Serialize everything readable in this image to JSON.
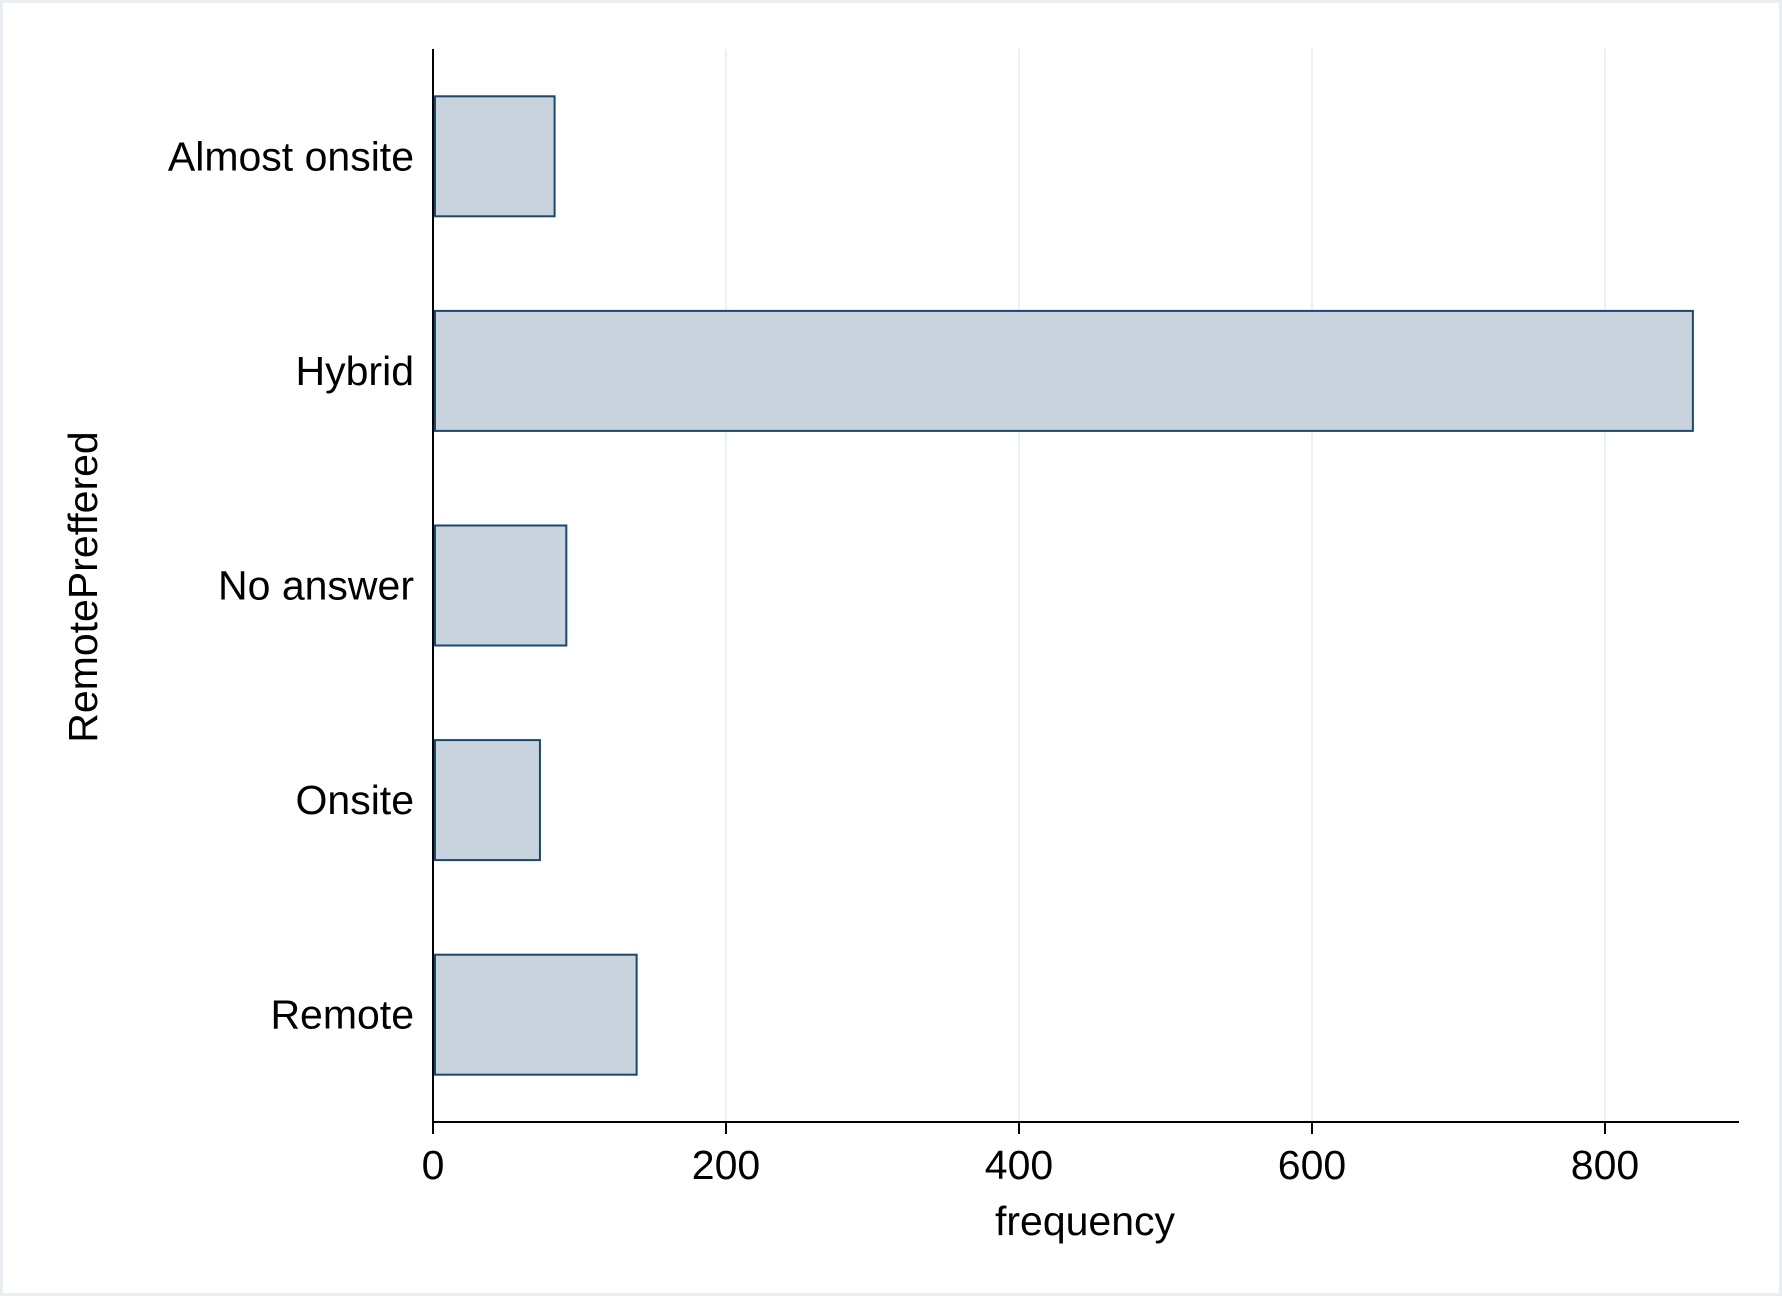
{
  "chart_data": {
    "type": "bar",
    "orientation": "horizontal",
    "categories": [
      "Almost onsite",
      "Hybrid",
      "No answer",
      "Onsite",
      "Remote"
    ],
    "values": [
      83,
      860,
      91,
      73,
      139
    ],
    "xlabel": "frequency",
    "ylabel": "RemotePreffered",
    "xlim": [
      0,
      890
    ],
    "xticks": [
      0,
      200,
      400,
      600,
      800
    ],
    "grid": "vertical",
    "legend": "none",
    "colors": {
      "bar_fill": "#c8d3de",
      "bar_stroke": "#1a476f",
      "grid": "#eaf0f3",
      "axis": "#000000",
      "frame": "#e9eef2"
    }
  }
}
